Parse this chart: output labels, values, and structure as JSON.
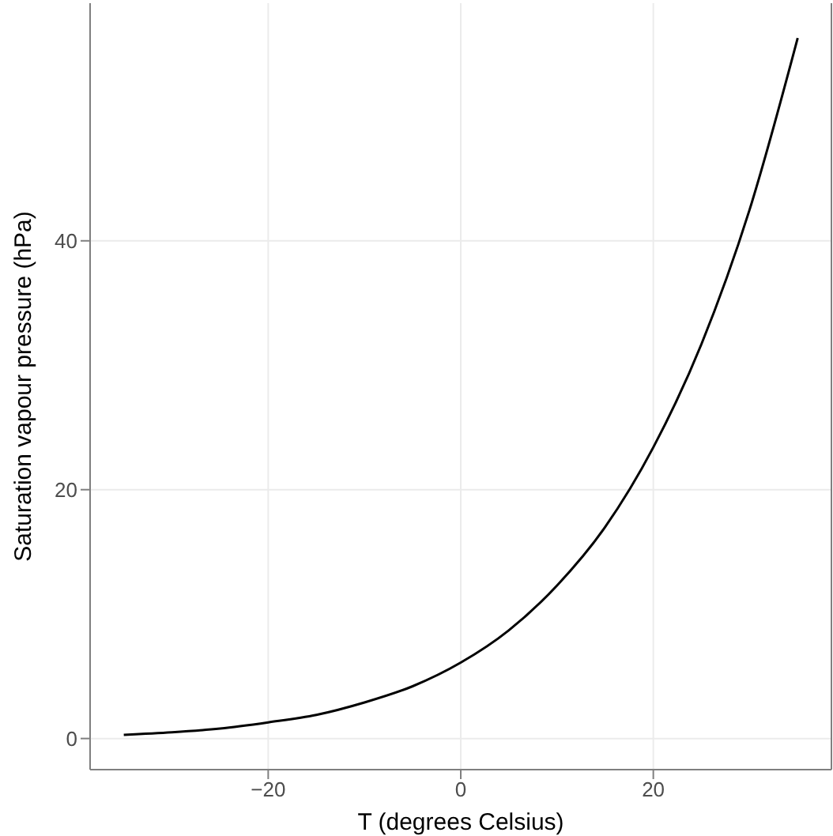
{
  "chart_data": {
    "type": "line",
    "xlabel": "T (degrees Celsius)",
    "ylabel": "Saturation vapour pressure (hPa)",
    "x": [
      -35,
      -30,
      -25,
      -20,
      -15,
      -10,
      -5,
      0,
      5,
      10,
      15,
      20,
      25,
      30,
      35
    ],
    "series": [
      {
        "color": "#000000",
        "values": [
          0.3,
          0.5,
          0.8,
          1.3,
          1.9,
          2.9,
          4.2,
          6.1,
          8.7,
          12.3,
          17.0,
          23.4,
          31.7,
          42.5,
          56.3
        ]
      }
    ],
    "xlim": [
      -38.5,
      38.5
    ],
    "xticks": [
      {
        "value": -20,
        "label": "−20"
      },
      0,
      20
    ],
    "ylim": [
      -2.5,
      59.1
    ],
    "yticks": [
      0,
      20,
      40
    ],
    "grid": true,
    "marker": "none",
    "line_style": "solid"
  }
}
